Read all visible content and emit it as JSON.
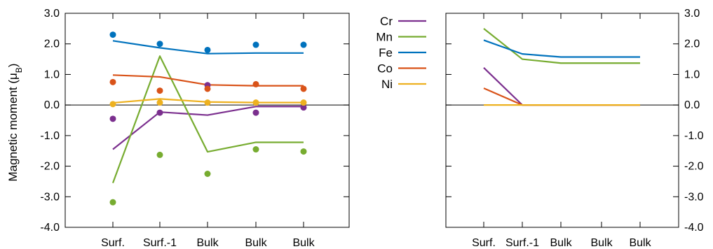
{
  "chart_data": [
    {
      "type": "line",
      "panel": "left",
      "ylabel": "Magnetic moment (μB)",
      "ylim": [
        -4.0,
        3.0
      ],
      "yticks": [
        "3.0",
        "2.0",
        "1.0",
        "0.0",
        "-1.0",
        "-2.0",
        "-3.0",
        "-4.0"
      ],
      "categories": [
        "Surf.",
        "Surf.-1",
        "Bulk",
        "Bulk",
        "Bulk"
      ],
      "series": [
        {
          "name": "Cr",
          "color": "#7b2f8e",
          "line": [
            -1.45,
            -0.23,
            -0.33,
            -0.05,
            -0.05
          ],
          "points": [
            -0.45,
            -0.25,
            0.65,
            -0.25,
            -0.08
          ]
        },
        {
          "name": "Mn",
          "color": "#77ac30",
          "line": [
            -2.55,
            1.6,
            -1.53,
            -1.22,
            -1.22
          ],
          "points": [
            -3.18,
            -1.63,
            -2.25,
            -1.45,
            -1.52
          ]
        },
        {
          "name": "Fe",
          "color": "#0072bd",
          "line": [
            2.1,
            1.87,
            1.68,
            1.7,
            1.7
          ],
          "points": [
            2.3,
            2.0,
            1.8,
            1.97,
            1.97
          ]
        },
        {
          "name": "Co",
          "color": "#d95319",
          "line": [
            0.98,
            0.92,
            0.66,
            0.63,
            0.63
          ],
          "points": [
            0.75,
            0.47,
            0.53,
            0.68,
            0.53
          ]
        },
        {
          "name": "Ni",
          "color": "#edb120",
          "line": [
            0.07,
            0.2,
            0.1,
            0.08,
            0.08
          ],
          "points": [
            0.03,
            0.08,
            0.08,
            0.08,
            0.08
          ]
        }
      ]
    },
    {
      "type": "line",
      "panel": "right",
      "ylim": [
        -4.0,
        3.0
      ],
      "yticks": [
        "3.0",
        "2.0",
        "1.0",
        "0.0",
        "-1.0",
        "-2.0",
        "-3.0",
        "-4.0"
      ],
      "categories": [
        "Surf.",
        "Surf.-1",
        "Bulk",
        "Bulk",
        "Bulk"
      ],
      "series": [
        {
          "name": "Cr",
          "color": "#7b2f8e",
          "line": [
            1.22,
            0.0,
            0.0,
            0.0,
            0.0
          ]
        },
        {
          "name": "Mn",
          "color": "#77ac30",
          "line": [
            2.5,
            1.5,
            1.37,
            1.37,
            1.37
          ]
        },
        {
          "name": "Fe",
          "color": "#0072bd",
          "line": [
            2.12,
            1.67,
            1.57,
            1.57,
            1.57
          ]
        },
        {
          "name": "Co",
          "color": "#d95319",
          "line": [
            0.55,
            0.0,
            0.0,
            0.0,
            0.0
          ]
        },
        {
          "name": "Ni",
          "color": "#edb120",
          "line": [
            0.0,
            0.0,
            0.0,
            0.0,
            0.0
          ]
        }
      ]
    }
  ],
  "legend": {
    "placement": "between panels",
    "entries": [
      {
        "name": "Cr",
        "color": "#7b2f8e"
      },
      {
        "name": "Mn",
        "color": "#77ac30"
      },
      {
        "name": "Fe",
        "color": "#0072bd"
      },
      {
        "name": "Co",
        "color": "#d95319"
      },
      {
        "name": "Ni",
        "color": "#edb120"
      }
    ]
  }
}
